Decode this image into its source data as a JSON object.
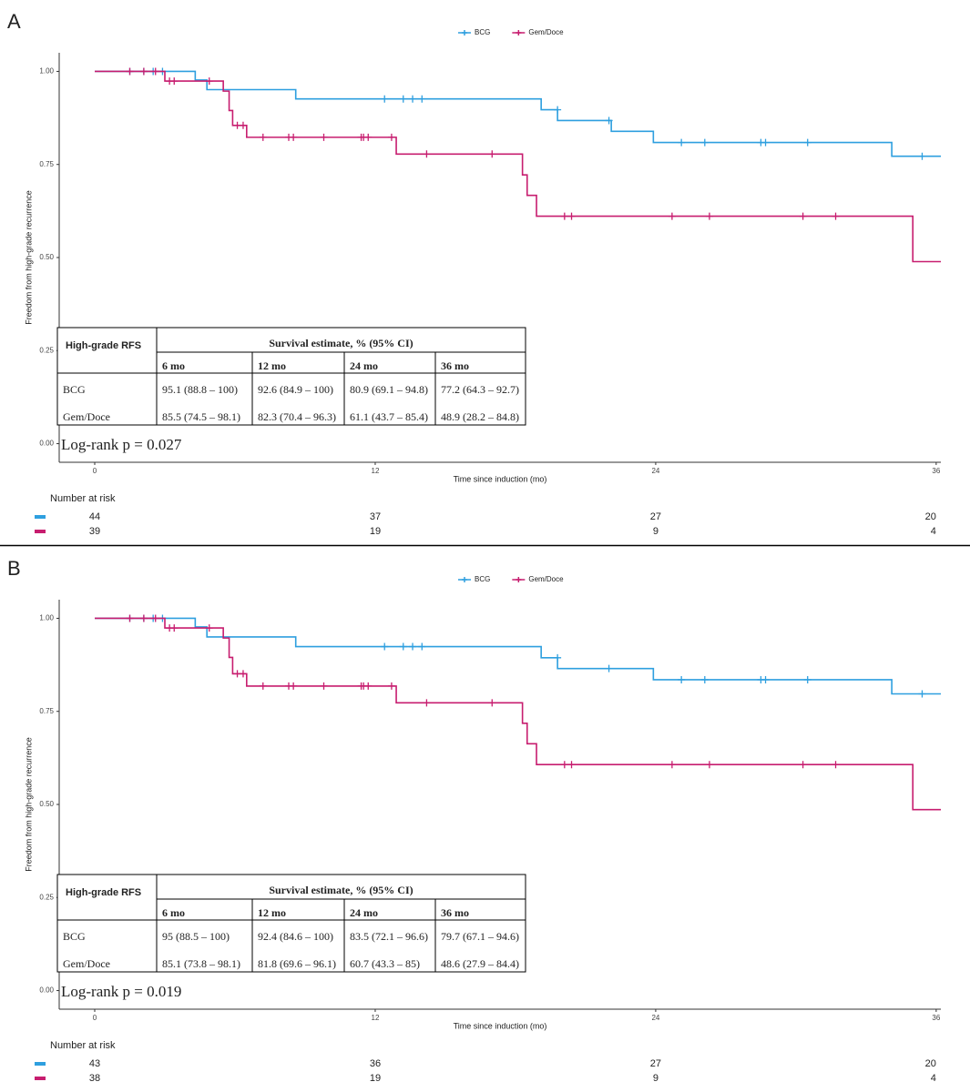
{
  "chart_data": [
    {
      "type": "line",
      "step": true,
      "panel": "A",
      "legend": "top",
      "x_label": "Time since induction (mo)",
      "y_label": "Freedom from high-grade recurrence",
      "xlim": [
        -1.52,
        36.2
      ],
      "xticks": [
        0,
        12,
        24,
        36
      ],
      "ylim": [
        -0.05,
        1.05
      ],
      "yticks": [
        {
          "value": 0,
          "label": "0.00"
        },
        {
          "value": 0.25,
          "label": "0.25"
        },
        {
          "value": 0.5,
          "label": "0.50"
        },
        {
          "value": 0.75,
          "label": "0.75"
        },
        {
          "value": 1,
          "label": "1.00"
        }
      ],
      "series": [
        {
          "name": "BCG",
          "color": "#2e9fdf",
          "x": [
            0,
            4.3,
            4.8,
            8.6,
            19.1,
            19.8,
            22.1,
            23.9,
            34.1,
            36.2
          ],
          "values": [
            1,
            0.977,
            0.951,
            0.926,
            0.897,
            0.868,
            0.839,
            0.809,
            0.772,
            0.772
          ],
          "censor_x": [
            1.5,
            2.1,
            2.5,
            2.9,
            12.4,
            13.2,
            13.6,
            14.0,
            19.8,
            22.0,
            25.1,
            26.1,
            28.5,
            28.7,
            30.5,
            35.4
          ],
          "censor_values": [
            1,
            1,
            1,
            1,
            0.926,
            0.926,
            0.926,
            0.926,
            0.897,
            0.868,
            0.809,
            0.809,
            0.809,
            0.809,
            0.809,
            0.772
          ]
        },
        {
          "name": "Gem/Doce",
          "color": "#c71d6f",
          "x": [
            0,
            3.0,
            5.5,
            5.75,
            5.9,
            6.5,
            12.9,
            18.3,
            18.5,
            18.9,
            35.0,
            36.2
          ],
          "values": [
            1,
            0.974,
            0.947,
            0.895,
            0.855,
            0.823,
            0.778,
            0.722,
            0.667,
            0.611,
            0.489,
            0.489
          ],
          "censor_x": [
            1.5,
            2.1,
            2.6,
            3.2,
            3.4,
            4.9,
            6.1,
            6.35,
            7.2,
            8.3,
            8.5,
            9.8,
            11.4,
            11.5,
            11.7,
            12.7,
            14.2,
            17.0,
            20.1,
            20.4,
            24.7,
            26.3,
            30.3,
            31.7
          ],
          "censor_values": [
            1,
            1,
            1,
            0.974,
            0.974,
            0.974,
            0.855,
            0.855,
            0.823,
            0.823,
            0.823,
            0.823,
            0.823,
            0.823,
            0.823,
            0.823,
            0.778,
            0.778,
            0.611,
            0.611,
            0.611,
            0.611,
            0.611,
            0.611
          ]
        }
      ],
      "table": {
        "corner": "High-grade RFS",
        "header": "Survival estimate, % (95% CI)",
        "columns": [
          "6 mo",
          "12 mo",
          "24 mo",
          "36 mo"
        ],
        "rows": [
          [
            "BCG",
            "95.1 (88.8 – 100)",
            "92.6 (84.9 – 100)",
            "80.9 (69.1 – 94.8)",
            "77.2 (64.3 – 92.7)"
          ],
          [
            "Gem/Doce",
            "85.5 (74.5 – 98.1)",
            "82.3 (70.4 – 96.3)",
            "61.1 (43.7 – 85.4)",
            "48.9 (28.2 – 84.8)"
          ]
        ]
      },
      "annotation": "Log-rank p = 0.027",
      "risk_table": {
        "title": "Number at risk",
        "rows": [
          [
            44,
            37,
            27,
            20
          ],
          [
            39,
            19,
            9,
            4
          ]
        ]
      }
    },
    {
      "type": "line",
      "step": true,
      "panel": "B",
      "legend": "top",
      "x_label": "Time since induction (mo)",
      "y_label": "Freedom from high-grade recurrence",
      "xlim": [
        -1.52,
        36.2
      ],
      "xticks": [
        0,
        12,
        24,
        36
      ],
      "ylim": [
        -0.05,
        1.05
      ],
      "yticks": [
        {
          "value": 0,
          "label": "0.00"
        },
        {
          "value": 0.25,
          "label": "0.25"
        },
        {
          "value": 0.5,
          "label": "0.50"
        },
        {
          "value": 0.75,
          "label": "0.75"
        },
        {
          "value": 1,
          "label": "1.00"
        }
      ],
      "series": [
        {
          "name": "BCG",
          "color": "#2e9fdf",
          "x": [
            0,
            4.3,
            4.8,
            8.6,
            19.1,
            19.8,
            23.9,
            34.1,
            36.2
          ],
          "values": [
            1,
            0.977,
            0.95,
            0.924,
            0.894,
            0.865,
            0.835,
            0.797,
            0.797
          ],
          "censor_x": [
            1.5,
            2.1,
            2.5,
            2.9,
            12.4,
            13.2,
            13.6,
            14.0,
            19.8,
            22.0,
            25.1,
            26.1,
            28.5,
            28.7,
            30.5,
            35.4
          ],
          "censor_values": [
            1,
            1,
            1,
            1,
            0.924,
            0.924,
            0.924,
            0.924,
            0.894,
            0.865,
            0.835,
            0.835,
            0.835,
            0.835,
            0.835,
            0.797
          ]
        },
        {
          "name": "Gem/Doce",
          "color": "#c71d6f",
          "x": [
            0,
            3.0,
            5.5,
            5.75,
            5.9,
            6.5,
            12.9,
            18.3,
            18.5,
            18.9,
            35.0,
            36.2
          ],
          "values": [
            1,
            0.974,
            0.947,
            0.895,
            0.851,
            0.818,
            0.773,
            0.718,
            0.663,
            0.607,
            0.486,
            0.486
          ],
          "censor_x": [
            1.5,
            2.1,
            2.6,
            3.2,
            3.4,
            4.9,
            6.1,
            6.35,
            7.2,
            8.3,
            8.5,
            9.8,
            11.4,
            11.5,
            11.7,
            12.7,
            14.2,
            17.0,
            20.1,
            20.4,
            24.7,
            26.3,
            30.3,
            31.7
          ],
          "censor_values": [
            1,
            1,
            1,
            0.974,
            0.974,
            0.974,
            0.851,
            0.851,
            0.818,
            0.818,
            0.818,
            0.818,
            0.818,
            0.818,
            0.818,
            0.818,
            0.773,
            0.773,
            0.607,
            0.607,
            0.607,
            0.607,
            0.607,
            0.607
          ]
        }
      ],
      "table": {
        "corner": "High-grade RFS",
        "header": "Survival estimate, % (95% CI)",
        "columns": [
          "6 mo",
          "12 mo",
          "24 mo",
          "36 mo"
        ],
        "rows": [
          [
            "BCG",
            "95 (88.5 – 100)",
            "92.4 (84.6 – 100)",
            "83.5 (72.1 – 96.6)",
            "79.7 (67.1 – 94.6)"
          ],
          [
            "Gem/Doce",
            "85.1 (73.8 – 98.1)",
            "81.8 (69.6 – 96.1)",
            "60.7 (43.3 – 85)",
            "48.6 (27.9 – 84.4)"
          ]
        ]
      },
      "annotation": "Log-rank p = 0.019",
      "risk_table": {
        "title": "Number at risk",
        "rows": [
          [
            43,
            36,
            27,
            20
          ],
          [
            38,
            19,
            9,
            4
          ]
        ]
      }
    }
  ]
}
